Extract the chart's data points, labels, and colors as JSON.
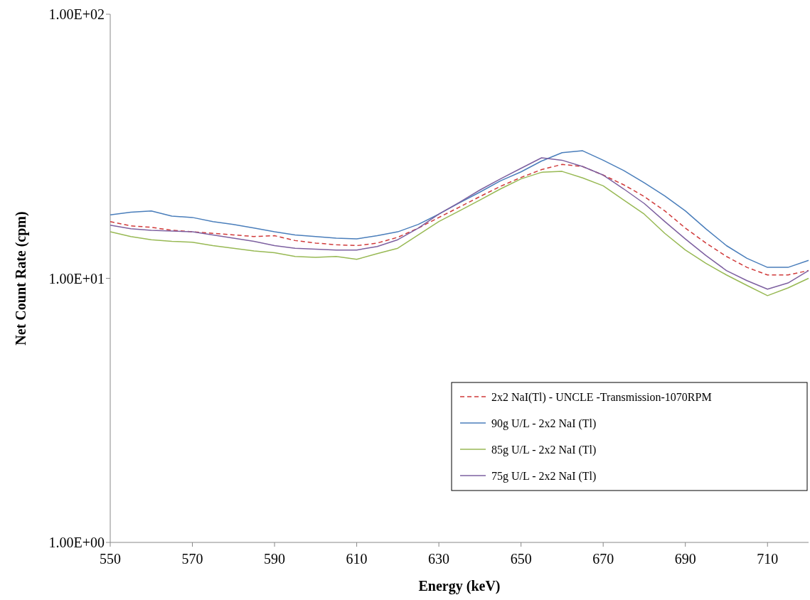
{
  "chart_data": {
    "type": "line",
    "xlabel": "Energy (keV)",
    "ylabel": "Net Count Rate (cpm)",
    "x": [
      550,
      555,
      560,
      565,
      570,
      575,
      580,
      585,
      590,
      595,
      600,
      605,
      610,
      615,
      620,
      625,
      630,
      635,
      640,
      645,
      650,
      655,
      660,
      665,
      670,
      675,
      680,
      685,
      690,
      695,
      700,
      705,
      710,
      715,
      720
    ],
    "series": [
      {
        "name": "2x2 NaI(Tl) - UNCLE -Transmission-1070RPM",
        "color": "#d03a3a",
        "line_style": "dashed",
        "values": [
          16.4,
          15.8,
          15.6,
          15.2,
          15.0,
          14.8,
          14.6,
          14.4,
          14.5,
          13.9,
          13.6,
          13.4,
          13.3,
          13.6,
          14.3,
          15.5,
          17.0,
          18.6,
          20.4,
          22.3,
          24.1,
          25.8,
          27.0,
          26.5,
          24.6,
          22.6,
          20.4,
          18.0,
          15.5,
          13.6,
          12.1,
          11.0,
          10.3,
          10.3,
          10.7
        ]
      },
      {
        "name": "90g U/L - 2x2 NaI (Tl)",
        "color": "#4a7ebb",
        "line_style": "solid",
        "values": [
          17.4,
          17.8,
          18.0,
          17.2,
          17.0,
          16.4,
          16.0,
          15.5,
          15.0,
          14.6,
          14.4,
          14.2,
          14.1,
          14.5,
          15.0,
          16.0,
          17.5,
          19.3,
          21.2,
          23.4,
          25.3,
          27.8,
          29.9,
          30.4,
          28.0,
          25.6,
          23.0,
          20.5,
          18.0,
          15.4,
          13.3,
          11.9,
          11.0,
          11.0,
          11.7
        ]
      },
      {
        "name": "85g U/L - 2x2 NaI (Tl)",
        "color": "#98b954",
        "line_style": "solid",
        "values": [
          15.0,
          14.4,
          14.0,
          13.8,
          13.7,
          13.3,
          13.0,
          12.7,
          12.5,
          12.1,
          12.0,
          12.1,
          11.8,
          12.4,
          13.0,
          14.6,
          16.4,
          18.0,
          19.8,
          21.8,
          23.8,
          25.2,
          25.4,
          24.0,
          22.4,
          19.8,
          17.5,
          14.8,
          12.8,
          11.4,
          10.3,
          9.4,
          8.6,
          9.2,
          10.0
        ]
      },
      {
        "name": "75g U/L - 2x2 NaI (Tl)",
        "color": "#7d60a0",
        "line_style": "solid",
        "values": [
          15.9,
          15.4,
          15.2,
          15.1,
          15.0,
          14.6,
          14.2,
          13.8,
          13.3,
          13.0,
          12.9,
          12.8,
          12.8,
          13.2,
          14.0,
          15.5,
          17.5,
          19.4,
          21.6,
          23.8,
          26.1,
          28.6,
          28.0,
          26.5,
          24.6,
          21.8,
          19.2,
          16.4,
          14.1,
          12.2,
          10.7,
          9.8,
          9.1,
          9.6,
          10.7
        ]
      }
    ],
    "xlim": [
      550,
      720
    ],
    "xticks": [
      550,
      570,
      590,
      610,
      630,
      650,
      670,
      690,
      710
    ],
    "ylim": [
      1,
      100
    ],
    "yticks": [
      {
        "value": 1,
        "label": "1.00E+00"
      },
      {
        "value": 10,
        "label": "1.00E+01"
      },
      {
        "value": 100,
        "label": "1.00E+02"
      }
    ],
    "log": true,
    "grid": false,
    "legend": "right",
    "marker": "none"
  }
}
